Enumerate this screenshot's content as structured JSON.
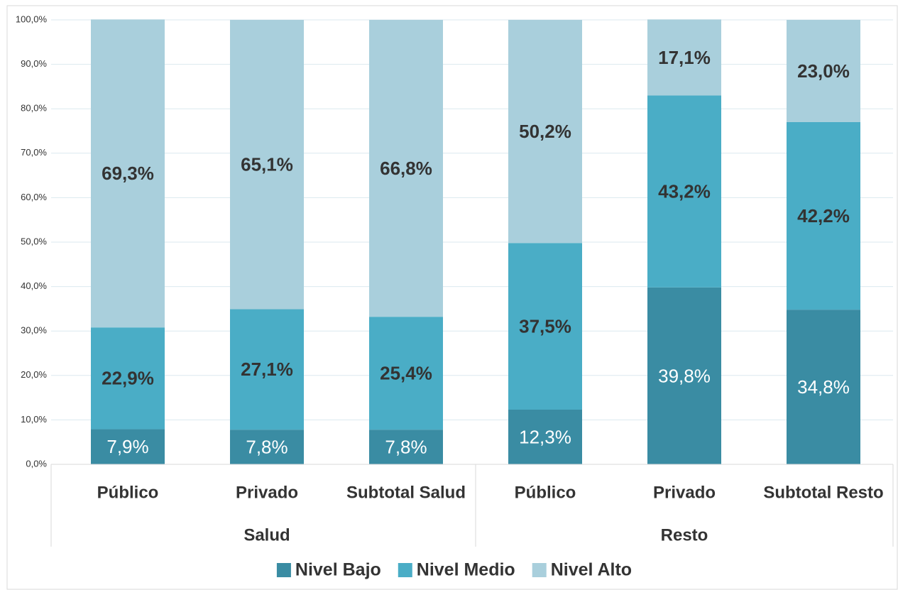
{
  "chart_data": {
    "type": "stacked_bar",
    "categories": [
      "Público",
      "Privado",
      "Subtotal Salud",
      "Público",
      "Privado",
      "Subtotal Resto"
    ],
    "groups": [
      "Salud",
      "Resto"
    ],
    "series": [
      {
        "name": "Nivel Bajo",
        "color": "#3a8ca3",
        "label_color": "#ffffff",
        "values": [
          7.9,
          7.8,
          7.8,
          12.3,
          39.8,
          34.8
        ],
        "value_labels": [
          "7,9%",
          "7,8%",
          "7,8%",
          "12,3%",
          "39,8%",
          "34,8%"
        ]
      },
      {
        "name": "Nivel Medio",
        "color": "#4aadc6",
        "label_color": "#333333",
        "values": [
          22.9,
          27.1,
          25.4,
          37.5,
          43.2,
          42.2
        ],
        "value_labels": [
          "22,9%",
          "27,1%",
          "25,4%",
          "37,5%",
          "43,2%",
          "42,2%"
        ]
      },
      {
        "name": "Nivel Alto",
        "color": "#a9cfdc",
        "label_color": "#333333",
        "values": [
          69.3,
          65.1,
          66.8,
          50.2,
          17.1,
          23.0
        ],
        "value_labels": [
          "69,3%",
          "65,1%",
          "66,8%",
          "50,2%",
          "17,1%",
          "23,0%"
        ]
      }
    ],
    "ylim": [
      0,
      100
    ],
    "yticks": [
      {
        "value": 0,
        "label": "0,0%"
      },
      {
        "value": 10,
        "label": "10,0%"
      },
      {
        "value": 20,
        "label": "20,0%"
      },
      {
        "value": 30,
        "label": "30,0%"
      },
      {
        "value": 40,
        "label": "40,0%"
      },
      {
        "value": 50,
        "label": "50,0%"
      },
      {
        "value": 60,
        "label": "60,0%"
      },
      {
        "value": 70,
        "label": "70,0%"
      },
      {
        "value": 80,
        "label": "80,0%"
      },
      {
        "value": 90,
        "label": "90,0%"
      },
      {
        "value": 100,
        "label": "100,0%"
      }
    ],
    "grid": true,
    "legend": "bottom"
  }
}
